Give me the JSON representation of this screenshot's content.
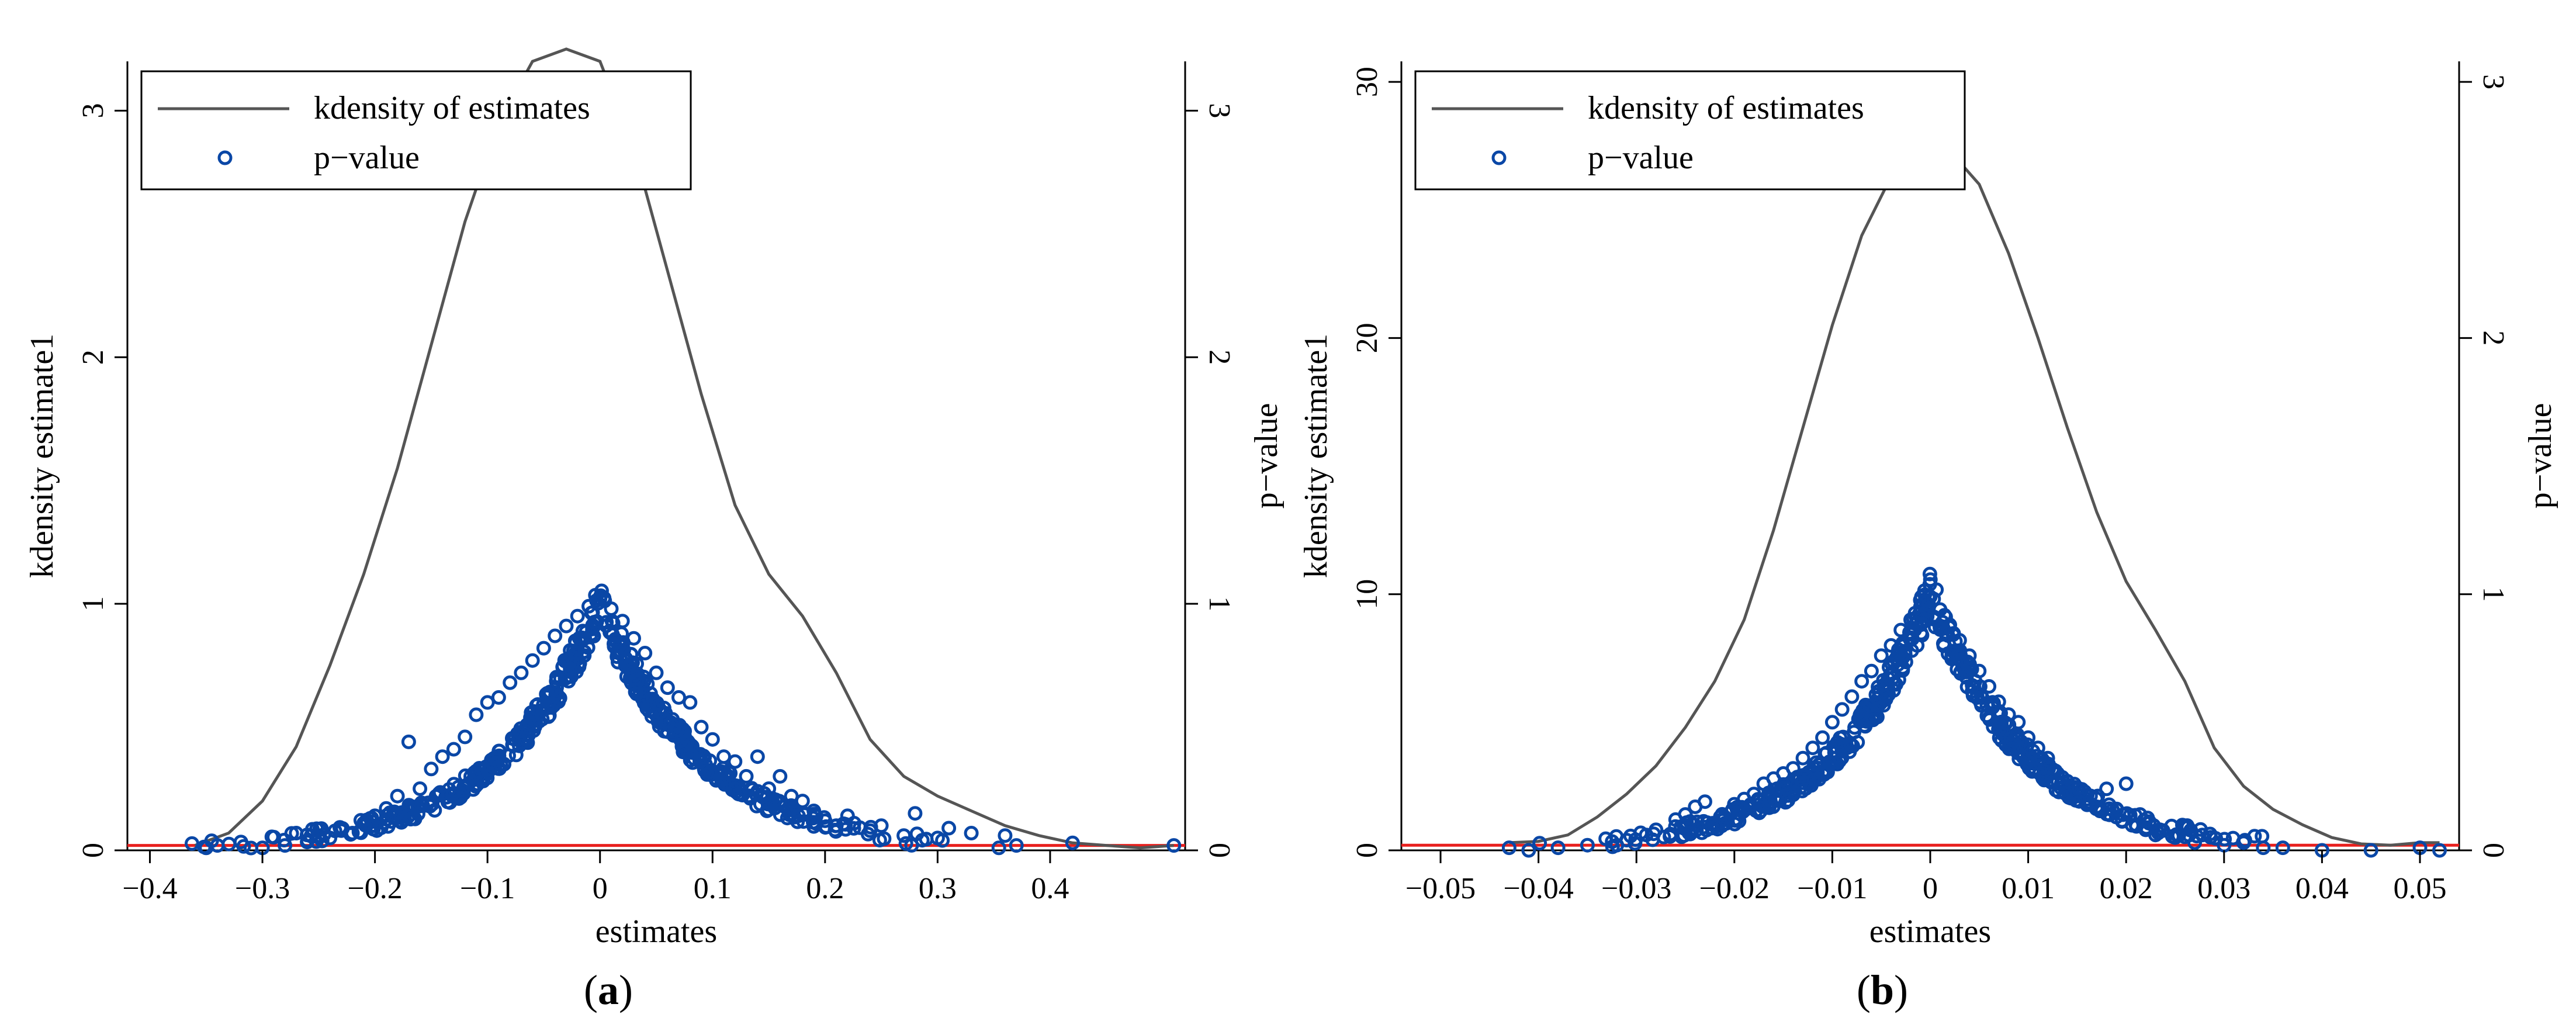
{
  "chart_data": [
    {
      "type": "line+scatter",
      "panel_label": "a",
      "xlabel": "estimates",
      "ylabel_left": "kdensity estimate1",
      "ylabel_right": "p−value",
      "xlim": [
        -0.42,
        0.52
      ],
      "ylim_left": [
        0,
        3.2
      ],
      "ylim_right": [
        0,
        3.2
      ],
      "x_ticks": [
        -0.4,
        -0.3,
        -0.2,
        -0.1,
        0,
        0.1,
        0.2,
        0.3,
        0.4
      ],
      "x_tick_labels": [
        "−0.4",
        "−0.3",
        "−0.2",
        "−0.1",
        "0",
        "0.1",
        "0.2",
        "0.3",
        "0.4"
      ],
      "y_left_ticks": [
        0,
        1,
        2,
        3
      ],
      "y_left_tick_labels": [
        "0",
        "1",
        "2",
        "3"
      ],
      "y_right_ticks": [
        0,
        1,
        2,
        3
      ],
      "y_right_tick_labels": [
        "0",
        "1",
        "2",
        "3"
      ],
      "legend": {
        "position": "top-left",
        "entries": [
          {
            "label": "kdensity of estimates",
            "marker": "line",
            "color": "#555555"
          },
          {
            "label": "p−value",
            "marker": "circle",
            "color": "#0a47a6"
          }
        ]
      },
      "reference_line": {
        "y": 0.02,
        "color": "#e8201e"
      },
      "kdensity": {
        "x": [
          -0.36,
          -0.33,
          -0.3,
          -0.27,
          -0.24,
          -0.21,
          -0.18,
          -0.15,
          -0.12,
          -0.09,
          -0.06,
          -0.03,
          0,
          0.03,
          0.06,
          0.09,
          0.12,
          0.15,
          0.18,
          0.21,
          0.24,
          0.27,
          0.3,
          0.33,
          0.36,
          0.39,
          0.42,
          0.45,
          0.48,
          0.51
        ],
        "y": [
          0.02,
          0.07,
          0.2,
          0.42,
          0.75,
          1.12,
          1.55,
          2.05,
          2.55,
          2.95,
          3.2,
          3.25,
          3.2,
          2.85,
          2.35,
          1.85,
          1.4,
          1.12,
          0.95,
          0.72,
          0.45,
          0.3,
          0.22,
          0.16,
          0.1,
          0.06,
          0.03,
          0.02,
          0.01,
          0.02
        ]
      },
      "pvalue_peak": 1.0,
      "pvalue_spread": 0.1,
      "pvalue_points": [
        {
          "x": -0.35,
          "y": 0.01
        },
        {
          "x": -0.34,
          "y": 0.02
        },
        {
          "x": -0.3,
          "y": 0.01
        },
        {
          "x": -0.28,
          "y": 0.02
        },
        {
          "x": -0.27,
          "y": 0.07
        },
        {
          "x": -0.26,
          "y": 0.04
        },
        {
          "x": -0.25,
          "y": 0.06
        },
        {
          "x": -0.24,
          "y": 0.05
        },
        {
          "x": -0.23,
          "y": 0.08
        },
        {
          "x": -0.22,
          "y": 0.07
        },
        {
          "x": -0.21,
          "y": 0.11
        },
        {
          "x": -0.2,
          "y": 0.14
        },
        {
          "x": -0.19,
          "y": 0.17
        },
        {
          "x": -0.18,
          "y": 0.22
        },
        {
          "x": -0.17,
          "y": 0.44
        },
        {
          "x": -0.16,
          "y": 0.25
        },
        {
          "x": -0.15,
          "y": 0.33
        },
        {
          "x": -0.14,
          "y": 0.38
        },
        {
          "x": -0.13,
          "y": 0.41
        },
        {
          "x": -0.12,
          "y": 0.46
        },
        {
          "x": -0.11,
          "y": 0.55
        },
        {
          "x": -0.1,
          "y": 0.6
        },
        {
          "x": -0.09,
          "y": 0.62
        },
        {
          "x": -0.08,
          "y": 0.68
        },
        {
          "x": -0.07,
          "y": 0.72
        },
        {
          "x": -0.06,
          "y": 0.77
        },
        {
          "x": -0.05,
          "y": 0.82
        },
        {
          "x": -0.04,
          "y": 0.87
        },
        {
          "x": -0.03,
          "y": 0.91
        },
        {
          "x": -0.02,
          "y": 0.95
        },
        {
          "x": -0.01,
          "y": 0.99
        },
        {
          "x": 0,
          "y": 1.02
        },
        {
          "x": 0.01,
          "y": 0.98
        },
        {
          "x": 0.02,
          "y": 0.93
        },
        {
          "x": 0.03,
          "y": 0.86
        },
        {
          "x": 0.04,
          "y": 0.8
        },
        {
          "x": 0.05,
          "y": 0.72
        },
        {
          "x": 0.06,
          "y": 0.66
        },
        {
          "x": 0.07,
          "y": 0.62
        },
        {
          "x": 0.08,
          "y": 0.6
        },
        {
          "x": 0.09,
          "y": 0.5
        },
        {
          "x": 0.1,
          "y": 0.45
        },
        {
          "x": 0.11,
          "y": 0.38
        },
        {
          "x": 0.12,
          "y": 0.36
        },
        {
          "x": 0.13,
          "y": 0.3
        },
        {
          "x": 0.14,
          "y": 0.38
        },
        {
          "x": 0.15,
          "y": 0.25
        },
        {
          "x": 0.16,
          "y": 0.3
        },
        {
          "x": 0.17,
          "y": 0.22
        },
        {
          "x": 0.18,
          "y": 0.2
        },
        {
          "x": 0.19,
          "y": 0.16
        },
        {
          "x": 0.2,
          "y": 0.12
        },
        {
          "x": 0.21,
          "y": 0.1
        },
        {
          "x": 0.22,
          "y": 0.14
        },
        {
          "x": 0.24,
          "y": 0.08
        },
        {
          "x": 0.25,
          "y": 0.1
        },
        {
          "x": 0.27,
          "y": 0.06
        },
        {
          "x": 0.28,
          "y": 0.15
        },
        {
          "x": 0.3,
          "y": 0.05
        },
        {
          "x": 0.31,
          "y": 0.09
        },
        {
          "x": 0.33,
          "y": 0.07
        },
        {
          "x": 0.36,
          "y": 0.06
        },
        {
          "x": 0.37,
          "y": 0.02
        },
        {
          "x": 0.42,
          "y": 0.03
        },
        {
          "x": 0.51,
          "y": 0.02
        }
      ]
    },
    {
      "type": "line+scatter",
      "panel_label": "b",
      "xlabel": "estimates",
      "ylabel_left": "kdensity estimate1",
      "ylabel_right": "p−value",
      "xlim": [
        -0.054,
        0.054
      ],
      "ylim_left": [
        0,
        30.8
      ],
      "ylim_right": [
        0,
        3.08
      ],
      "x_ticks": [
        -0.05,
        -0.04,
        -0.03,
        -0.02,
        -0.01,
        0,
        0.01,
        0.02,
        0.03,
        0.04,
        0.05
      ],
      "x_tick_labels": [
        "−0.05",
        "−0.04",
        "−0.03",
        "−0.02",
        "−0.01",
        "0",
        "0.01",
        "0.02",
        "0.03",
        "0.04",
        "0.05"
      ],
      "y_left_ticks": [
        0,
        10,
        20,
        30
      ],
      "y_left_tick_labels": [
        "0",
        "10",
        "20",
        "30"
      ],
      "y_right_ticks": [
        0,
        1,
        2,
        3
      ],
      "y_right_tick_labels": [
        "0",
        "1",
        "2",
        "3"
      ],
      "legend": {
        "position": "top-left",
        "entries": [
          {
            "label": "kdensity of estimates",
            "marker": "line",
            "color": "#555555"
          },
          {
            "label": "p−value",
            "marker": "circle",
            "color": "#0a47a6"
          }
        ]
      },
      "reference_line": {
        "y": 0.02,
        "color": "#e8201e"
      },
      "kdensity": {
        "x": [
          -0.043,
          -0.04,
          -0.037,
          -0.034,
          -0.031,
          -0.028,
          -0.025,
          -0.022,
          -0.019,
          -0.016,
          -0.013,
          -0.01,
          -0.007,
          -0.004,
          -0.001,
          0,
          0.002,
          0.005,
          0.008,
          0.011,
          0.014,
          0.017,
          0.02,
          0.023,
          0.026,
          0.029,
          0.032,
          0.035,
          0.038,
          0.041,
          0.044,
          0.047,
          0.05,
          0.052
        ],
        "y": [
          0.3,
          0.35,
          0.6,
          1.3,
          2.2,
          3.3,
          4.8,
          6.6,
          9.0,
          12.5,
          16.5,
          20.5,
          24.0,
          26.3,
          27.5,
          27.6,
          27.3,
          26.0,
          23.3,
          20.0,
          16.5,
          13.2,
          10.5,
          8.6,
          6.6,
          4.0,
          2.5,
          1.6,
          1.0,
          0.5,
          0.25,
          0.2,
          0.3,
          0.3
        ]
      },
      "pvalue_peak": 1.0,
      "pvalue_spread": 0.011,
      "pvalue_points": [
        {
          "x": -0.043,
          "y": 0.01
        },
        {
          "x": -0.041,
          "y": 0.0
        },
        {
          "x": -0.038,
          "y": 0.01
        },
        {
          "x": -0.035,
          "y": 0.02
        },
        {
          "x": -0.032,
          "y": 0.02
        },
        {
          "x": -0.031,
          "y": 0.04
        },
        {
          "x": -0.029,
          "y": 0.06
        },
        {
          "x": -0.028,
          "y": 0.08
        },
        {
          "x": -0.026,
          "y": 0.12
        },
        {
          "x": -0.025,
          "y": 0.14
        },
        {
          "x": -0.024,
          "y": 0.17
        },
        {
          "x": -0.023,
          "y": 0.19
        },
        {
          "x": -0.022,
          "y": 0.1
        },
        {
          "x": -0.021,
          "y": 0.13
        },
        {
          "x": -0.02,
          "y": 0.18
        },
        {
          "x": -0.019,
          "y": 0.2
        },
        {
          "x": -0.018,
          "y": 0.22
        },
        {
          "x": -0.017,
          "y": 0.26
        },
        {
          "x": -0.016,
          "y": 0.28
        },
        {
          "x": -0.015,
          "y": 0.3
        },
        {
          "x": -0.014,
          "y": 0.32
        },
        {
          "x": -0.013,
          "y": 0.36
        },
        {
          "x": -0.012,
          "y": 0.4
        },
        {
          "x": -0.011,
          "y": 0.44
        },
        {
          "x": -0.01,
          "y": 0.5
        },
        {
          "x": -0.009,
          "y": 0.55
        },
        {
          "x": -0.008,
          "y": 0.6
        },
        {
          "x": -0.007,
          "y": 0.66
        },
        {
          "x": -0.006,
          "y": 0.7
        },
        {
          "x": -0.005,
          "y": 0.76
        },
        {
          "x": -0.004,
          "y": 0.8
        },
        {
          "x": -0.003,
          "y": 0.86
        },
        {
          "x": -0.002,
          "y": 0.9
        },
        {
          "x": -0.001,
          "y": 0.95
        },
        {
          "x": 0,
          "y": 0.99
        },
        {
          "x": 0.001,
          "y": 0.94
        },
        {
          "x": 0.002,
          "y": 0.88
        },
        {
          "x": 0.003,
          "y": 0.82
        },
        {
          "x": 0.004,
          "y": 0.76
        },
        {
          "x": 0.005,
          "y": 0.7
        },
        {
          "x": 0.006,
          "y": 0.64
        },
        {
          "x": 0.007,
          "y": 0.58
        },
        {
          "x": 0.008,
          "y": 0.53
        },
        {
          "x": 0.009,
          "y": 0.5
        },
        {
          "x": 0.01,
          "y": 0.44
        },
        {
          "x": 0.011,
          "y": 0.4
        },
        {
          "x": 0.012,
          "y": 0.36
        },
        {
          "x": 0.013,
          "y": 0.3
        },
        {
          "x": 0.014,
          "y": 0.27
        },
        {
          "x": 0.015,
          "y": 0.24
        },
        {
          "x": 0.016,
          "y": 0.2
        },
        {
          "x": 0.017,
          "y": 0.17
        },
        {
          "x": 0.018,
          "y": 0.24
        },
        {
          "x": 0.019,
          "y": 0.13
        },
        {
          "x": 0.02,
          "y": 0.26
        },
        {
          "x": 0.021,
          "y": 0.1
        },
        {
          "x": 0.022,
          "y": 0.08
        },
        {
          "x": 0.023,
          "y": 0.06
        },
        {
          "x": 0.025,
          "y": 0.05
        },
        {
          "x": 0.027,
          "y": 0.03
        },
        {
          "x": 0.03,
          "y": 0.02
        },
        {
          "x": 0.032,
          "y": 0.03
        },
        {
          "x": 0.034,
          "y": 0.01
        },
        {
          "x": 0.036,
          "y": 0.01
        },
        {
          "x": 0.04,
          "y": 0.0
        },
        {
          "x": 0.045,
          "y": 0.0
        },
        {
          "x": 0.05,
          "y": 0.01
        },
        {
          "x": 0.052,
          "y": 0.0
        }
      ]
    }
  ]
}
